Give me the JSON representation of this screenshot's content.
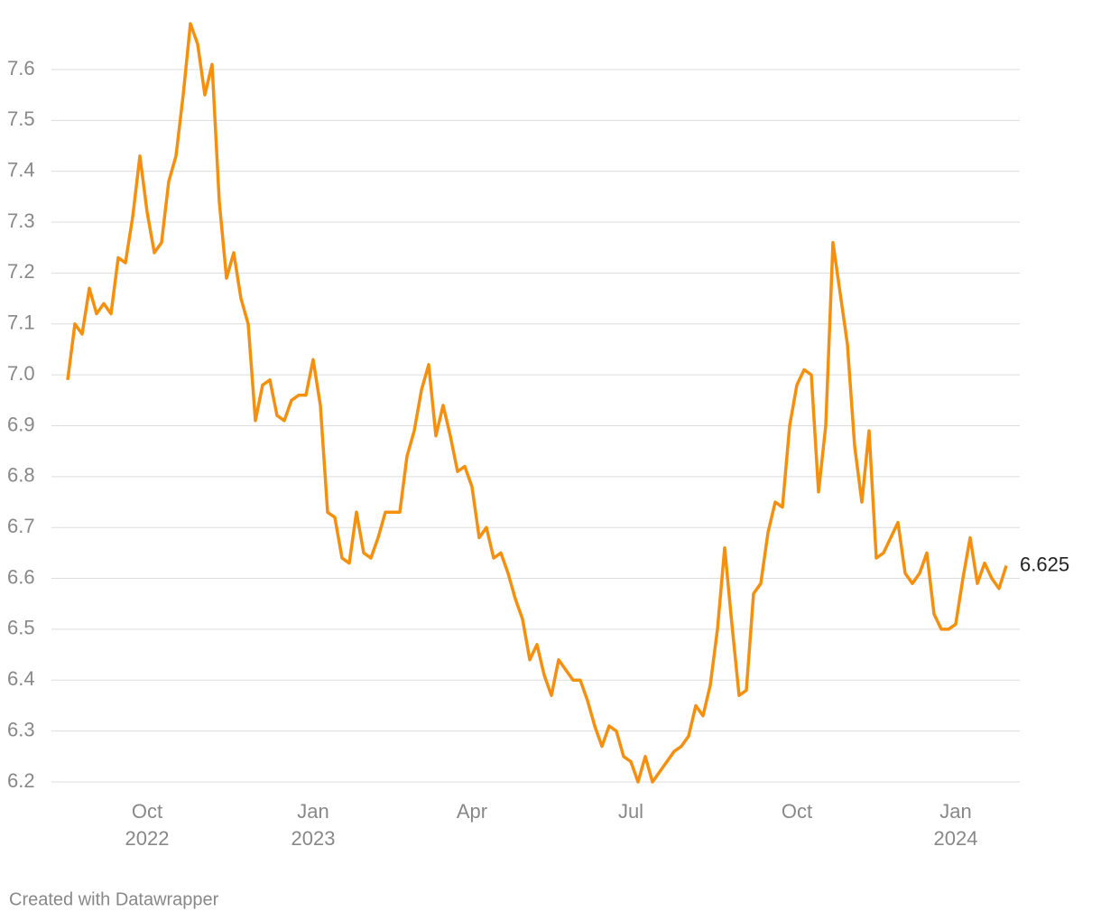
{
  "chart_data": {
    "type": "line",
    "categories": [
      null,
      null,
      null,
      null,
      null,
      null,
      null,
      null,
      null,
      null,
      null,
      "Oct 2022",
      null,
      null,
      null,
      null,
      null,
      null,
      null,
      null,
      null,
      null,
      null,
      null,
      null,
      null,
      null,
      null,
      null,
      null,
      null,
      null,
      null,
      null,
      "Jan 2023",
      null,
      null,
      null,
      null,
      null,
      null,
      null,
      null,
      null,
      null,
      null,
      null,
      null,
      null,
      null,
      null,
      null,
      null,
      null,
      null,
      null,
      "Apr",
      null,
      null,
      null,
      null,
      null,
      null,
      null,
      null,
      null,
      null,
      null,
      null,
      null,
      null,
      null,
      null,
      null,
      null,
      null,
      null,
      null,
      "Jul",
      null,
      null,
      null,
      null,
      null,
      null,
      null,
      null,
      null,
      null,
      null,
      null,
      null,
      null,
      null,
      null,
      null,
      null,
      null,
      null,
      null,
      null,
      "Oct",
      null,
      null,
      null,
      null,
      null,
      null,
      null,
      null,
      null,
      null,
      null,
      null,
      null,
      null,
      null,
      null,
      null,
      null,
      null,
      null,
      null,
      "Jan 2024",
      null,
      null,
      null,
      null,
      null,
      null,
      null
    ],
    "series": [
      {
        "color": "#f5900f",
        "values": [
          6.99,
          7.1,
          7.08,
          7.17,
          7.12,
          7.14,
          7.12,
          7.23,
          7.22,
          7.31,
          7.43,
          7.32,
          7.24,
          7.26,
          7.38,
          7.43,
          7.55,
          7.69,
          7.65,
          7.55,
          7.61,
          7.34,
          7.19,
          7.24,
          7.15,
          7.1,
          6.91,
          6.98,
          6.99,
          6.92,
          6.91,
          6.95,
          6.96,
          6.96,
          7.03,
          6.94,
          6.73,
          6.72,
          6.64,
          6.63,
          6.73,
          6.65,
          6.64,
          6.68,
          6.73,
          6.73,
          6.73,
          6.84,
          6.89,
          6.97,
          7.02,
          6.88,
          6.94,
          6.88,
          6.81,
          6.82,
          6.78,
          6.68,
          6.7,
          6.64,
          6.65,
          6.61,
          6.56,
          6.52,
          6.44,
          6.47,
          6.41,
          6.37,
          6.44,
          6.42,
          6.4,
          6.4,
          6.36,
          6.31,
          6.27,
          6.31,
          6.3,
          6.25,
          6.24,
          6.2,
          6.25,
          6.2,
          6.22,
          6.24,
          6.26,
          6.27,
          6.29,
          6.35,
          6.33,
          6.39,
          6.5,
          6.66,
          6.51,
          6.37,
          6.38,
          6.57,
          6.59,
          6.69,
          6.75,
          6.74,
          6.9,
          6.98,
          7.01,
          7.0,
          6.77,
          6.9,
          7.26,
          7.16,
          7.06,
          6.86,
          6.75,
          6.89,
          6.64,
          6.65,
          6.68,
          6.71,
          6.61,
          6.59,
          6.61,
          6.65,
          6.53,
          6.5,
          6.5,
          6.51,
          6.6,
          6.68,
          6.59,
          6.63,
          6.6,
          6.58,
          6.625
        ]
      }
    ],
    "ylim": [
      6.2,
      7.7
    ],
    "yticks": [
      6.2,
      6.3,
      6.4,
      6.5,
      6.6,
      6.7,
      6.8,
      6.9,
      {
        "value": 7,
        "label": "7.0"
      },
      7.1,
      7.2,
      7.3,
      7.4,
      7.5,
      7.6
    ],
    "grid": true,
    "credit": "Created with Datawrapper"
  }
}
